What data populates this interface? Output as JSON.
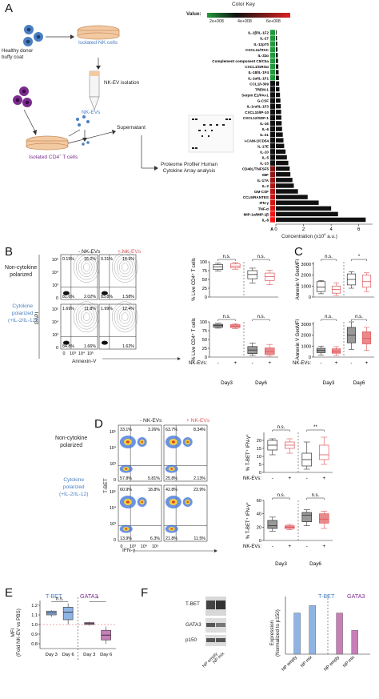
{
  "panels": {
    "a": "A",
    "b": "B",
    "c": "C",
    "d": "D",
    "e": "E",
    "f": "F"
  },
  "panel_a": {
    "healthy_donor": "Healthy donor\nbuffy coat",
    "isolated_nk": "Isolated NK cells",
    "nk_ev_isolation": "NK-EV isolation",
    "nk_evs": "NK-EVs",
    "isolated_cd4": "Isolated CD4",
    "cd4_suffix": "T cells",
    "supernatant": "Supernatant",
    "proteome": "Proteome Profiler Human\nCytokine Array analysis",
    "color_key": "Color Key",
    "value_label": "Value:",
    "key_ticks": [
      "2e+008",
      "4e+008",
      "6e+008"
    ],
    "xlabel": "Concentration (x10",
    "xlabel_sup": "6",
    "xlabel_end": " a.u.)"
  },
  "chart_data": [
    {
      "type": "bar",
      "orientation": "horizontal",
      "categories": [
        "IL-1β/IL-1F2",
        "IL-27",
        "IL-12p70",
        "CXCL11/ITAC",
        "IL-32α",
        "Complement component C5/C5a",
        "CXCL1/GROα",
        "IL-18/IL-1F4",
        "IL-1α/IL-1F1",
        "CCL1/I-309",
        "TREM-1",
        "Serpin E1/PAI-1",
        "G-CSF",
        "IL-1ra/IL-1F3",
        "CXCL10/IP-10",
        "CXCL12/SDF-1",
        "IL-16",
        "IL-6",
        "IL-21",
        "I-CAM-1/CD54",
        "IL-17E",
        "IL-10",
        "IL-5",
        "IL-13",
        "CD40L/TNFSF5",
        "MIF",
        "IL-17A",
        "IL-2",
        "GM-CSF",
        "CCL5/RANTES",
        "IFN-γ",
        "TNF-α",
        "MIP-1α/MIP-1β",
        "IL-8"
      ],
      "values": [
        0.05,
        0.08,
        0.1,
        0.12,
        0.14,
        0.16,
        0.18,
        0.2,
        0.22,
        0.24,
        0.26,
        0.3,
        0.33,
        0.36,
        0.38,
        0.4,
        0.42,
        0.45,
        0.5,
        0.55,
        0.6,
        0.7,
        0.8,
        0.9,
        1.0,
        1.05,
        1.2,
        1.3,
        1.6,
        2.3,
        3.1,
        4.0,
        4.5,
        6.5
      ],
      "xlabel": "Concentration (x10^6 a.u.)",
      "xticks": [
        0,
        2,
        4,
        6
      ],
      "xlim": [
        0,
        7
      ]
    },
    {
      "type": "box",
      "panel": "B",
      "ylabel": "% Live CD4+ T cells",
      "groups": [
        "Day3",
        "Day6"
      ],
      "rows": [
        {
          "condition": "Non-cytokine polarized",
          "boxes": [
            {
              "group": "Day3",
              "ev": "-",
              "min": 74,
              "q1": 78,
              "median": 86,
              "q3": 92,
              "max": 96
            },
            {
              "group": "Day3",
              "ev": "+",
              "min": 79,
              "q1": 83,
              "median": 88,
              "q3": 94,
              "max": 98
            },
            {
              "group": "Day6",
              "ev": "-",
              "min": 40,
              "q1": 52,
              "median": 64,
              "q3": 75,
              "max": 82
            },
            {
              "group": "Day6",
              "ev": "+",
              "min": 35,
              "q1": 47,
              "median": 58,
              "q3": 68,
              "max": 76
            }
          ],
          "sig": [
            "n.s.",
            "n.s."
          ]
        },
        {
          "condition": "Cytokine polarized",
          "boxes": [
            {
              "group": "Day3",
              "ev": "-",
              "min": 82,
              "q1": 85,
              "median": 90,
              "q3": 93,
              "max": 96
            },
            {
              "group": "Day3",
              "ev": "+",
              "min": 81,
              "q1": 84,
              "median": 88,
              "q3": 92,
              "max": 95
            },
            {
              "group": "Day6",
              "ev": "-",
              "min": 5,
              "q1": 10,
              "median": 20,
              "q3": 30,
              "max": 40
            },
            {
              "group": "Day6",
              "ev": "+",
              "min": 3,
              "q1": 8,
              "median": 16,
              "q3": 26,
              "max": 36
            }
          ],
          "sig": [
            "n.s.",
            "n.s."
          ]
        }
      ],
      "yticks": [
        0,
        25,
        50,
        75,
        100
      ],
      "ylim": [
        0,
        100
      ]
    },
    {
      "type": "box",
      "panel": "C",
      "ylabel": "Annexin V GeoMFI",
      "groups": [
        "Day3",
        "Day6"
      ],
      "rows": [
        {
          "boxes": [
            {
              "group": "Day3",
              "ev": "-",
              "min": 300,
              "q1": 500,
              "median": 900,
              "q3": 1400,
              "max": 1500
            },
            {
              "group": "Day3",
              "ev": "+",
              "min": 150,
              "q1": 350,
              "median": 700,
              "q3": 1000,
              "max": 1300
            },
            {
              "group": "Day6",
              "ev": "-",
              "min": 800,
              "q1": 1100,
              "median": 1600,
              "q3": 2100,
              "max": 2300
            },
            {
              "group": "Day6",
              "ev": "+",
              "min": 500,
              "q1": 900,
              "median": 1400,
              "q3": 2000,
              "max": 2200
            }
          ],
          "sig": [
            "n.s.",
            "*"
          ]
        },
        {
          "boxes": [
            {
              "group": "Day3",
              "ev": "-",
              "min": 200,
              "q1": 400,
              "median": 600,
              "q3": 800,
              "max": 1000
            },
            {
              "group": "Day3",
              "ev": "+",
              "min": 150,
              "q1": 350,
              "median": 500,
              "q3": 750,
              "max": 950
            },
            {
              "group": "Day6",
              "ev": "-",
              "min": 700,
              "q1": 1300,
              "median": 2000,
              "q3": 2700,
              "max": 3200
            },
            {
              "group": "Day6",
              "ev": "+",
              "min": 600,
              "q1": 1200,
              "median": 1700,
              "q3": 2300,
              "max": 2700
            }
          ],
          "sig": [
            "n.s.",
            "n.s."
          ]
        }
      ],
      "yticks": [
        0,
        1000,
        2000,
        3000
      ],
      "ylim": [
        0,
        3200
      ]
    },
    {
      "type": "box",
      "panel": "D",
      "ylabel": "% T-BET+ IFN-γ+",
      "groups": [
        "Day3",
        "Day6"
      ],
      "rows": [
        {
          "boxes": [
            {
              "group": "Day3",
              "ev": "-",
              "min": 11,
              "q1": 14,
              "median": 17,
              "q3": 20,
              "max": 21
            },
            {
              "group": "Day3",
              "ev": "+",
              "min": 12,
              "q1": 15,
              "median": 17,
              "q3": 19,
              "max": 21
            },
            {
              "group": "Day6",
              "ev": "-",
              "min": 2,
              "q1": 4,
              "median": 8,
              "q3": 12,
              "max": 19
            },
            {
              "group": "Day6",
              "ev": "+",
              "min": 5,
              "q1": 8,
              "median": 11,
              "q3": 17,
              "max": 22
            }
          ],
          "sig": [
            "n.s.",
            "**"
          ],
          "yticks": [
            0,
            5,
            10,
            15,
            20
          ],
          "ylim": [
            0,
            25
          ]
        },
        {
          "boxes": [
            {
              "group": "Day3",
              "ev": "-",
              "min": 14,
              "q1": 18,
              "median": 22,
              "q3": 30,
              "max": 35
            },
            {
              "group": "Day3",
              "ev": "+",
              "min": 16,
              "q1": 18,
              "median": 20,
              "q3": 22,
              "max": 24
            },
            {
              "group": "Day6",
              "ev": "-",
              "min": 22,
              "q1": 28,
              "median": 38,
              "q3": 42,
              "max": 46
            },
            {
              "group": "Day6",
              "ev": "+",
              "min": 18,
              "q1": 26,
              "median": 32,
              "q3": 40,
              "max": 44
            }
          ],
          "sig": [
            "n.s.",
            "n.s."
          ],
          "yticks": [
            0,
            20,
            40,
            60
          ],
          "ylim": [
            0,
            60
          ]
        }
      ]
    },
    {
      "type": "box",
      "panel": "E",
      "ylabel": "MFI\n(Fold NK-EV vs PBS)",
      "series": [
        {
          "name": "T-BET",
          "boxes": [
            {
              "x": "Day 3",
              "min": 1.08,
              "q1": 1.1,
              "median": 1.12,
              "q3": 1.14,
              "max": 1.15
            },
            {
              "x": "Day 6",
              "min": 1.0,
              "q1": 1.05,
              "median": 1.13,
              "q3": 1.18,
              "max": 1.22
            }
          ],
          "sig": "n.s."
        },
        {
          "name": "GATA3",
          "boxes": [
            {
              "x": "Day 3",
              "min": 0.99,
              "q1": 1.0,
              "median": 1.01,
              "q3": 1.02,
              "max": 1.03
            },
            {
              "x": "Day 6",
              "min": 0.8,
              "q1": 0.84,
              "median": 0.89,
              "q3": 0.94,
              "max": 0.98
            }
          ],
          "sig": "*"
        }
      ],
      "yticks": [
        0.8,
        0.9,
        1.0,
        1.1,
        1.2
      ],
      "ylim": [
        0.75,
        1.25
      ],
      "reference": 1.0
    },
    {
      "type": "bar",
      "panel": "F",
      "ylabel": "Expression\n(Normalized to p150)",
      "series": [
        {
          "name": "T-BET",
          "categories": [
            "NP empty",
            "NP mix"
          ],
          "values": [
            1.0,
            1.18
          ]
        },
        {
          "name": "GATA3",
          "categories": [
            "NP empty",
            "NP mix"
          ],
          "values": [
            1.0,
            0.58
          ]
        }
      ],
      "ylim": [
        0,
        1.4
      ]
    }
  ],
  "panel_b": {
    "minus_ev": "- NK-EVs",
    "plus_ev": "+ NK-EVs",
    "row1": "Non-cytokine\npolarized",
    "row2_l1": "Cytokine",
    "row2_l2": "polarized",
    "row2_l3": "(+IL-2/IL-12)",
    "ylab": "DAPI",
    "xlab": "Annexin-V",
    "quads": [
      [
        "0.15%",
        "16.2%",
        "81.6%",
        "2.02%"
      ],
      [
        "0.31%",
        "14.3%",
        "83.8%",
        "1.58%"
      ],
      [
        "1.69%",
        "11.8%",
        "84.8%",
        "1.66%"
      ],
      [
        "1.99%",
        "12.4%",
        "",
        "1.62%"
      ]
    ],
    "ticks": [
      "0",
      "10³",
      "10⁴",
      "10⁵"
    ],
    "nk_evs": "NK-EVs:",
    "day3": "Day3",
    "day6": "Day6"
  },
  "panel_d": {
    "minus_ev": "- NK-EVs",
    "plus_ev": "+ NK-EVs",
    "row1": "Non-cytokine\npolarized",
    "row2_l1": "Cytokine",
    "row2_l2": "polarized",
    "row2_l3": "(+IL-2/IL-12)",
    "ylab": "T-BET",
    "xlab": "IFN-γ",
    "quads": [
      [
        "33.1%",
        "3.26%",
        "57.8%",
        "5.81%"
      ],
      [
        "63.7%",
        "8.34%",
        "25.8%",
        "2.13%"
      ],
      [
        "60.9%",
        "18.8%",
        "13.9%",
        "6.3%"
      ],
      [
        "42.8%",
        "23.9%",
        "21.8%",
        "11.5%"
      ]
    ]
  },
  "panel_e": {
    "tbet": "T-BET",
    "gata3": "GATA3",
    "day3": "Day 3",
    "day6": "Day 6"
  },
  "panel_f": {
    "bands": [
      "T-BET",
      "GATA3",
      "p150"
    ],
    "lanes": [
      "NP empty",
      "NP mix"
    ],
    "tbet": "T-BET",
    "gata3": "GATA3"
  },
  "colors": {
    "minus": "#333333",
    "plus": "#e0555a",
    "tbet_bar": "#8fb4e3",
    "gata3_bar": "#c77fb8",
    "blue_label": "#4a7fc1",
    "purple_label": "#7b2d8e"
  }
}
